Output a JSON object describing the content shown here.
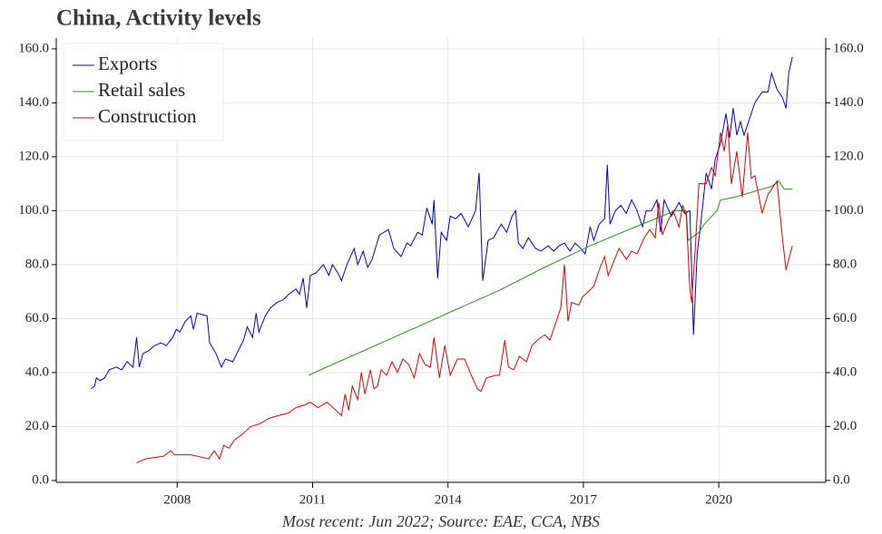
{
  "chart_data": {
    "type": "line",
    "title": "China, Activity levels",
    "footnote": "Most recent: Jun 2022; Source: EAE, CCA, NBS",
    "xlim": [
      2005.32,
      2022.37
    ],
    "xticks": [
      2008,
      2011,
      2014,
      2017,
      2020
    ],
    "ylim": [
      -0.7,
      164
    ],
    "yticks": [
      {
        "value": 0,
        "label": "0.0"
      },
      {
        "value": 20,
        "label": "20.0"
      },
      {
        "value": 40,
        "label": "40.0"
      },
      {
        "value": 60,
        "label": "60.0"
      },
      {
        "value": 80,
        "label": "80.0"
      },
      {
        "value": 100,
        "label": "100.0"
      },
      {
        "value": 120,
        "label": "120.0"
      },
      {
        "value": 140,
        "label": "140.0"
      },
      {
        "value": 160,
        "label": "160.0"
      }
    ],
    "grid": true,
    "legend": "upper left",
    "series": [
      {
        "name": "Exports",
        "color": "#0000cc",
        "x": [
          2006.09,
          2006.17,
          2006.21,
          2006.29,
          2006.39,
          2006.49,
          2006.65,
          2006.77,
          2006.89,
          2007.02,
          2007.1,
          2007.16,
          2007.24,
          2007.36,
          2007.5,
          2007.64,
          2007.76,
          2007.9,
          2007.98,
          2008.06,
          2008.18,
          2008.3,
          2008.36,
          2008.44,
          2008.66,
          2008.72,
          2008.86,
          2008.98,
          2009.07,
          2009.23,
          2009.35,
          2009.47,
          2009.55,
          2009.67,
          2009.75,
          2009.81,
          2009.95,
          2010.07,
          2010.21,
          2010.35,
          2010.47,
          2010.63,
          2010.71,
          2010.79,
          2010.87,
          2010.95,
          2011.08,
          2011.24,
          2011.36,
          2011.44,
          2011.56,
          2011.64,
          2011.76,
          2011.92,
          2012.0,
          2012.12,
          2012.22,
          2012.32,
          2012.48,
          2012.68,
          2012.8,
          2012.96,
          2013.09,
          2013.17,
          2013.33,
          2013.43,
          2013.53,
          2013.65,
          2013.69,
          2013.77,
          2013.85,
          2013.97,
          2014.05,
          2014.17,
          2014.29,
          2014.45,
          2014.61,
          2014.69,
          2014.77,
          2014.89,
          2015.01,
          2015.18,
          2015.3,
          2015.42,
          2015.5,
          2015.56,
          2015.66,
          2015.78,
          2015.94,
          2016.06,
          2016.22,
          2016.34,
          2016.46,
          2016.58,
          2016.7,
          2016.82,
          2016.94,
          2017.04,
          2017.15,
          2017.23,
          2017.35,
          2017.47,
          2017.53,
          2017.59,
          2017.71,
          2017.83,
          2017.95,
          2018.07,
          2018.19,
          2018.31,
          2018.39,
          2018.51,
          2018.63,
          2018.71,
          2018.79,
          2018.95,
          2019.12,
          2019.24,
          2019.36,
          2019.44,
          2019.52,
          2019.6,
          2019.72,
          2019.84,
          2019.92,
          2020.04,
          2020.16,
          2020.24,
          2020.32,
          2020.4,
          2020.48,
          2020.56,
          2020.68,
          2020.8,
          2020.96,
          2021.09,
          2021.17,
          2021.29,
          2021.41,
          2021.49,
          2021.55,
          2021.63
        ],
        "values": [
          34,
          35,
          38,
          37,
          38,
          41,
          42,
          41,
          44,
          42,
          53,
          42,
          47,
          48,
          50,
          51,
          50,
          53,
          56,
          55,
          59,
          61,
          56,
          62,
          61,
          51,
          47,
          42,
          45,
          44,
          48,
          52,
          57,
          53,
          62,
          55,
          61,
          64,
          66,
          67,
          69,
          71,
          69,
          75,
          64,
          76,
          77,
          80,
          76,
          80,
          77,
          74,
          80,
          86,
          80,
          85,
          79,
          82,
          91,
          93,
          86,
          83,
          88,
          87,
          92,
          91,
          101,
          95,
          104,
          75,
          92,
          89,
          98,
          97,
          99,
          94,
          100,
          114,
          74,
          89,
          90,
          95,
          92,
          98,
          100,
          88,
          86,
          90,
          86,
          85,
          87,
          85,
          87,
          88,
          85,
          88,
          86,
          84,
          94,
          89,
          95,
          97,
          117,
          95,
          100,
          102,
          99,
          104,
          100,
          94,
          100,
          100,
          104,
          92,
          104,
          98,
          103,
          99,
          100,
          54,
          84,
          95,
          114,
          108,
          119,
          125,
          136,
          127,
          138,
          128,
          133,
          128,
          134,
          140,
          144,
          144,
          151,
          145,
          142,
          138,
          151,
          157
        ]
      },
      {
        "name": "Retail sales",
        "color": "#2e8b22",
        "x": [
          2010.91,
          2012.12,
          2013.13,
          2014.13,
          2015.14,
          2016.14,
          2017.15,
          2018.15,
          2019.04,
          2019.28,
          2019.32,
          2019.56,
          2019.68,
          2019.96,
          2020.04,
          2020.36,
          2020.76,
          2021.17,
          2021.33,
          2021.45,
          2021.63
        ],
        "values": [
          39,
          48,
          55.5,
          63,
          70.5,
          79,
          87,
          94,
          100,
          100,
          89,
          92,
          95,
          100,
          104,
          105,
          107,
          109,
          111,
          108,
          108
        ]
      },
      {
        "name": "Construction",
        "color": "#e00000",
        "x": [
          2007.1,
          2007.3,
          2007.7,
          2007.86,
          2007.94,
          2008.3,
          2008.7,
          2008.82,
          2008.94,
          2009.03,
          2009.15,
          2009.27,
          2009.43,
          2009.63,
          2009.83,
          2010.03,
          2010.23,
          2010.47,
          2010.63,
          2010.83,
          2010.95,
          2011.12,
          2011.32,
          2011.52,
          2011.64,
          2011.72,
          2011.8,
          2011.88,
          2012.0,
          2012.08,
          2012.16,
          2012.28,
          2012.36,
          2012.44,
          2012.52,
          2012.64,
          2012.76,
          2012.88,
          2013.0,
          2013.13,
          2013.25,
          2013.37,
          2013.49,
          2013.61,
          2013.69,
          2013.81,
          2013.93,
          2014.05,
          2014.21,
          2014.37,
          2014.49,
          2014.65,
          2014.73,
          2014.85,
          2015.06,
          2015.14,
          2015.26,
          2015.34,
          2015.46,
          2015.58,
          2015.74,
          2015.86,
          2015.98,
          2016.14,
          2016.26,
          2016.38,
          2016.5,
          2016.58,
          2016.66,
          2016.74,
          2016.9,
          2016.98,
          2017.11,
          2017.23,
          2017.35,
          2017.47,
          2017.55,
          2017.67,
          2017.79,
          2017.95,
          2018.07,
          2018.19,
          2018.35,
          2018.47,
          2018.59,
          2018.67,
          2018.75,
          2018.87,
          2018.99,
          2019.12,
          2019.2,
          2019.28,
          2019.36,
          2019.4,
          2019.48,
          2019.56,
          2019.72,
          2019.84,
          2019.92,
          2020.04,
          2020.12,
          2020.2,
          2020.28,
          2020.4,
          2020.52,
          2020.64,
          2020.72,
          2020.8,
          2020.96,
          2021.09,
          2021.29,
          2021.41,
          2021.49,
          2021.63
        ],
        "values": [
          6.5,
          8,
          9,
          11,
          9.5,
          9.5,
          8,
          11,
          8,
          13,
          12,
          15,
          17,
          20,
          21,
          23,
          24,
          25,
          27,
          28,
          29,
          27,
          29,
          26,
          24,
          32,
          26,
          35,
          30,
          40,
          32,
          41,
          34,
          35,
          41,
          39,
          44,
          40,
          45,
          43,
          38,
          47,
          43,
          42,
          53,
          38,
          50,
          39,
          45,
          45,
          40,
          34,
          33,
          38,
          39,
          39,
          52,
          42,
          41,
          46,
          44,
          50,
          52,
          54,
          52,
          58,
          64,
          80,
          59,
          66,
          65,
          68,
          70,
          72,
          78,
          83,
          76,
          81,
          86,
          82,
          85,
          84,
          90,
          93,
          90,
          103,
          91,
          96,
          100,
          94,
          102,
          98,
          71,
          66,
          86,
          110,
          110,
          116,
          113,
          129,
          122,
          132,
          110,
          122,
          105,
          129,
          112,
          113,
          99,
          106,
          111,
          90,
          78,
          87
        ]
      }
    ]
  }
}
